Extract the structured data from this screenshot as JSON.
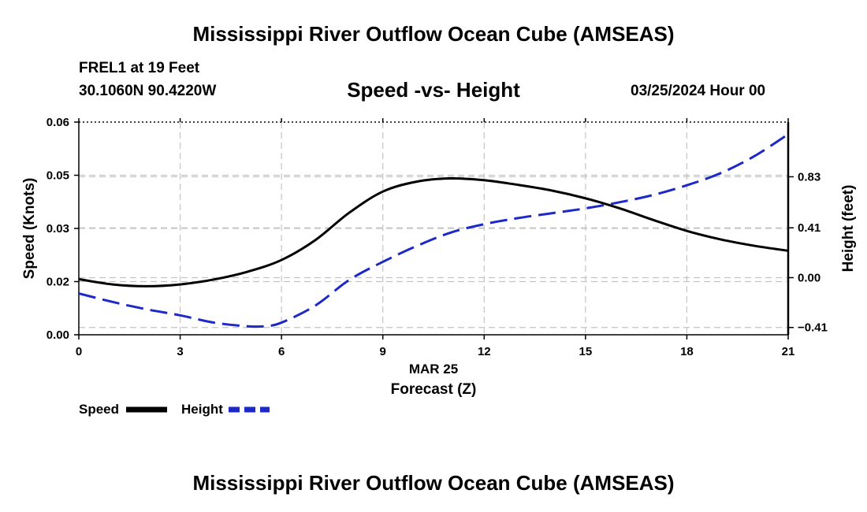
{
  "header": {
    "title": "Mississippi River Outflow Ocean Cube (AMSEAS)",
    "station": "FREL1 at 19 Feet",
    "coords": "30.1060N  90.4220W",
    "subtitle": "Speed -vs- Height",
    "datetime": "03/25/2024 Hour 00"
  },
  "footer": {
    "title": "Mississippi River Outflow Ocean Cube (AMSEAS)"
  },
  "chart_data": {
    "type": "line",
    "title": "Speed -vs- Height",
    "xlabel": "Forecast (Z)",
    "xlabel_date": "MAR 25",
    "ylabel": "Speed (Knots)",
    "y2label": "Height (feet)",
    "xlim": [
      0,
      21
    ],
    "ylim": [
      0,
      0.06
    ],
    "y2lim": [
      -0.47,
      1.28
    ],
    "x_ticks": [
      0,
      3,
      6,
      9,
      12,
      15,
      18,
      21
    ],
    "x_tick_labels": [
      "0",
      "3",
      "6",
      "9",
      "12",
      "15",
      "18",
      "21"
    ],
    "y_ticks": [
      0,
      0.015,
      0.03,
      0.045,
      0.06
    ],
    "y_tick_labels": [
      "0.00",
      "0.02",
      "0.03",
      "0.05",
      "0.06"
    ],
    "y2_ticks": [
      -0.41,
      0,
      0.41,
      0.83
    ],
    "y2_tick_labels": [
      "-0.41",
      "0.00",
      "0.41",
      "0.83"
    ],
    "grid": true,
    "legend_placement": "bottom-left",
    "series": [
      {
        "name": "Speed",
        "axis": "left",
        "color": "#000000",
        "dash": "solid",
        "x": [
          0,
          1,
          2,
          3,
          4,
          5,
          6,
          7,
          8,
          9,
          10,
          11,
          12,
          13,
          14,
          15,
          16,
          17,
          18,
          19,
          20,
          21
        ],
        "values": [
          0.0157,
          0.0142,
          0.0137,
          0.0142,
          0.0156,
          0.0178,
          0.0211,
          0.0267,
          0.0344,
          0.0404,
          0.0432,
          0.0441,
          0.0436,
          0.0423,
          0.0407,
          0.0385,
          0.0357,
          0.0324,
          0.0293,
          0.0269,
          0.0251,
          0.0237
        ]
      },
      {
        "name": "Height",
        "axis": "right",
        "color": "#1c28c8",
        "dash": "dashed",
        "x": [
          0,
          1,
          2,
          3,
          4,
          5,
          5.5,
          6,
          7,
          8,
          9,
          10,
          11,
          12,
          13,
          14,
          15,
          16,
          17,
          18,
          19,
          20,
          21
        ],
        "values": [
          -0.13,
          -0.2,
          -0.26,
          -0.31,
          -0.37,
          -0.4,
          -0.4,
          -0.37,
          -0.23,
          -0.02,
          0.13,
          0.26,
          0.37,
          0.44,
          0.49,
          0.53,
          0.57,
          0.62,
          0.68,
          0.76,
          0.86,
          1.0,
          1.18
        ]
      }
    ]
  }
}
